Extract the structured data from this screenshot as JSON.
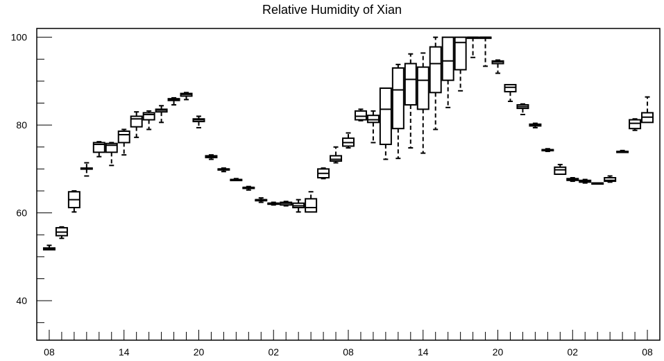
{
  "chart_data": {
    "type": "box",
    "title": "Relative Humidity of Xian",
    "xlabel": "",
    "ylabel": "",
    "ylim": [
      31,
      102
    ],
    "y_ticks": [
      40,
      60,
      80,
      100
    ],
    "x_tick_labels": [
      "08",
      "14",
      "20",
      "02",
      "08",
      "14",
      "20",
      "02",
      "08"
    ],
    "x_tick_hours": [
      0,
      6,
      12,
      18,
      24,
      30,
      36,
      42,
      48
    ],
    "x_range_hours": [
      -1,
      49
    ],
    "boxes": [
      {
        "x": 0,
        "whisker_low": 51.6,
        "q1": 51.6,
        "median": 51.8,
        "q3": 52.0,
        "whisker_high": 52.6
      },
      {
        "x": 1,
        "whisker_low": 54.2,
        "q1": 54.8,
        "median": 55.6,
        "q3": 56.6,
        "whisker_high": 56.8
      },
      {
        "x": 2,
        "whisker_low": 60.2,
        "q1": 61.2,
        "median": 63.0,
        "q3": 64.8,
        "whisker_high": 65.0
      },
      {
        "x": 3,
        "whisker_low": 68.4,
        "q1": 70.0,
        "median": 70.0,
        "q3": 70.2,
        "whisker_high": 71.4
      },
      {
        "x": 4,
        "whisker_low": 72.8,
        "q1": 73.8,
        "median": 75.6,
        "q3": 76.0,
        "whisker_high": 76.2
      },
      {
        "x": 5,
        "whisker_low": 70.8,
        "q1": 73.8,
        "median": 75.4,
        "q3": 75.8,
        "whisker_high": 76.0
      },
      {
        "x": 6,
        "whisker_low": 73.2,
        "q1": 76.0,
        "median": 77.8,
        "q3": 78.6,
        "whisker_high": 79.0
      },
      {
        "x": 7,
        "whisker_low": 77.2,
        "q1": 79.6,
        "median": 81.4,
        "q3": 82.0,
        "whisker_high": 83.0
      },
      {
        "x": 8,
        "whisker_low": 79.0,
        "q1": 81.2,
        "median": 82.4,
        "q3": 82.8,
        "whisker_high": 83.2
      },
      {
        "x": 9,
        "whisker_low": 80.6,
        "q1": 83.0,
        "median": 83.4,
        "q3": 83.6,
        "whisker_high": 84.4
      },
      {
        "x": 10,
        "whisker_low": 84.6,
        "q1": 85.6,
        "median": 85.8,
        "q3": 86.0,
        "whisker_high": 86.2
      },
      {
        "x": 11,
        "whisker_low": 85.8,
        "q1": 86.6,
        "median": 87.0,
        "q3": 87.2,
        "whisker_high": 87.4
      },
      {
        "x": 12,
        "whisker_low": 79.4,
        "q1": 80.8,
        "median": 81.2,
        "q3": 81.4,
        "whisker_high": 82.0
      },
      {
        "x": 13,
        "whisker_low": 72.2,
        "q1": 72.6,
        "median": 72.8,
        "q3": 73.0,
        "whisker_high": 73.2
      },
      {
        "x": 14,
        "whisker_low": 69.4,
        "q1": 69.8,
        "median": 70.0,
        "q3": 70.0,
        "whisker_high": 70.2
      },
      {
        "x": 15,
        "whisker_low": 67.4,
        "q1": 67.6,
        "median": 67.6,
        "q3": 67.6,
        "whisker_high": 67.8
      },
      {
        "x": 16,
        "whisker_low": 65.2,
        "q1": 65.6,
        "median": 65.8,
        "q3": 65.8,
        "whisker_high": 66.0
      },
      {
        "x": 17,
        "whisker_low": 62.4,
        "q1": 62.8,
        "median": 63.0,
        "q3": 63.0,
        "whisker_high": 63.4
      },
      {
        "x": 18,
        "whisker_low": 61.8,
        "q1": 62.2,
        "median": 62.2,
        "q3": 62.2,
        "whisker_high": 62.4
      },
      {
        "x": 19,
        "whisker_low": 61.6,
        "q1": 61.8,
        "median": 62.2,
        "q3": 62.4,
        "whisker_high": 62.6
      },
      {
        "x": 20,
        "whisker_low": 60.2,
        "q1": 61.2,
        "median": 61.6,
        "q3": 62.2,
        "whisker_high": 63.0
      },
      {
        "x": 21,
        "whisker_low": 60.2,
        "q1": 60.2,
        "median": 61.2,
        "q3": 63.2,
        "whisker_high": 64.8
      },
      {
        "x": 22,
        "whisker_low": 67.8,
        "q1": 68.0,
        "median": 69.0,
        "q3": 70.0,
        "whisker_high": 70.2
      },
      {
        "x": 23,
        "whisker_low": 71.4,
        "q1": 71.8,
        "median": 72.2,
        "q3": 73.0,
        "whisker_high": 75.0
      },
      {
        "x": 24,
        "whisker_low": 74.8,
        "q1": 75.2,
        "median": 76.0,
        "q3": 77.0,
        "whisker_high": 78.2
      },
      {
        "x": 25,
        "whisker_low": 81.0,
        "q1": 81.2,
        "median": 82.0,
        "q3": 83.2,
        "whisker_high": 83.6
      },
      {
        "x": 26,
        "whisker_low": 76.0,
        "q1": 80.6,
        "median": 81.2,
        "q3": 82.2,
        "whisker_high": 83.2
      },
      {
        "x": 27,
        "whisker_low": 72.2,
        "q1": 75.6,
        "median": 83.6,
        "q3": 88.4,
        "whisker_high": 88.4
      },
      {
        "x": 28,
        "whisker_low": 72.4,
        "q1": 79.2,
        "median": 88.0,
        "q3": 93.0,
        "whisker_high": 93.8
      },
      {
        "x": 29,
        "whisker_low": 74.8,
        "q1": 84.6,
        "median": 90.4,
        "q3": 94.0,
        "whisker_high": 96.2
      },
      {
        "x": 30,
        "whisker_low": 73.6,
        "q1": 83.6,
        "median": 90.2,
        "q3": 93.2,
        "whisker_high": 96.4
      },
      {
        "x": 31,
        "whisker_low": 79.0,
        "q1": 87.4,
        "median": 94.0,
        "q3": 97.8,
        "whisker_high": 100.0
      },
      {
        "x": 32,
        "whisker_low": 84.0,
        "q1": 90.2,
        "median": 94.6,
        "q3": 100.0,
        "whisker_high": 100.0
      },
      {
        "x": 33,
        "whisker_low": 87.8,
        "q1": 92.6,
        "median": 98.8,
        "q3": 100.0,
        "whisker_high": 100.0
      },
      {
        "x": 34,
        "whisker_low": 95.4,
        "q1": 100.0,
        "median": 100.0,
        "q3": 100.0,
        "whisker_high": 100.0
      },
      {
        "x": 35,
        "whisker_low": 93.4,
        "q1": 100.0,
        "median": 100.0,
        "q3": 100.0,
        "whisker_high": 100.0
      },
      {
        "x": 36,
        "whisker_low": 91.8,
        "q1": 94.0,
        "median": 94.4,
        "q3": 94.6,
        "whisker_high": 94.8
      },
      {
        "x": 37,
        "whisker_low": 85.4,
        "q1": 87.6,
        "median": 88.6,
        "q3": 89.2,
        "whisker_high": 89.2
      },
      {
        "x": 38,
        "whisker_low": 82.4,
        "q1": 83.8,
        "median": 84.2,
        "q3": 84.6,
        "whisker_high": 84.8
      },
      {
        "x": 39,
        "whisker_low": 79.4,
        "q1": 79.8,
        "median": 80.0,
        "q3": 80.2,
        "whisker_high": 80.4
      },
      {
        "x": 40,
        "whisker_low": 74.0,
        "q1": 74.2,
        "median": 74.4,
        "q3": 74.4,
        "whisker_high": 74.6
      },
      {
        "x": 41,
        "whisker_low": 68.8,
        "q1": 68.8,
        "median": 69.8,
        "q3": 70.4,
        "whisker_high": 71.0
      },
      {
        "x": 42,
        "whisker_low": 67.2,
        "q1": 67.4,
        "median": 67.6,
        "q3": 67.8,
        "whisker_high": 68.0
      },
      {
        "x": 43,
        "whisker_low": 66.8,
        "q1": 67.0,
        "median": 67.2,
        "q3": 67.4,
        "whisker_high": 67.6
      },
      {
        "x": 44,
        "whisker_low": 66.8,
        "q1": 66.8,
        "median": 66.8,
        "q3": 66.8,
        "whisker_high": 66.8
      },
      {
        "x": 45,
        "whisker_low": 67.0,
        "q1": 67.2,
        "median": 67.4,
        "q3": 68.0,
        "whisker_high": 68.4
      },
      {
        "x": 46,
        "whisker_low": 73.8,
        "q1": 73.8,
        "median": 74.0,
        "q3": 74.0,
        "whisker_high": 74.2
      },
      {
        "x": 47,
        "whisker_low": 78.8,
        "q1": 79.2,
        "median": 80.4,
        "q3": 81.2,
        "whisker_high": 81.4
      },
      {
        "x": 48,
        "whisker_low": 80.6,
        "q1": 80.6,
        "median": 81.8,
        "q3": 82.8,
        "whisker_high": 86.4
      }
    ],
    "grid": false,
    "legend": "none",
    "colors": {
      "stroke": "#000000",
      "background": "#ffffff"
    }
  }
}
